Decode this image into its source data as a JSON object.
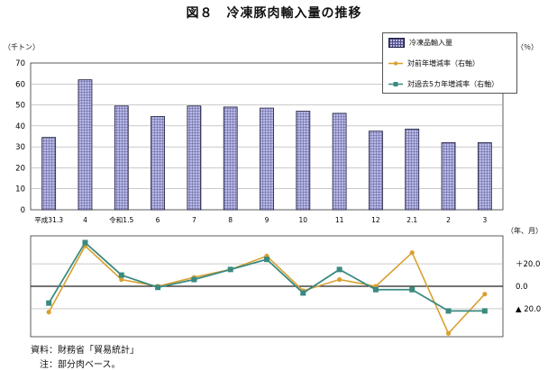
{
  "title": "図８　冷凍豚肉輸入量の推移",
  "left_unit": "（千トン）",
  "right_unit": "（％）",
  "x_unit": "（年、月）",
  "source_lines": [
    "資料：財務省「貿易統計」",
    "　注：部分肉ベース。"
  ],
  "colors": {
    "bar_fill": "#b8b8e8",
    "bar_grid": "#4a4a80",
    "yoy": "#d9a030",
    "vs5y": "#3a8a80"
  },
  "chart_data": [
    {
      "type": "bar",
      "categories": [
        "平成31.3",
        "4",
        "令和1.5",
        "6",
        "7",
        "8",
        "9",
        "10",
        "11",
        "12",
        "2.1",
        "2",
        "3"
      ],
      "series": [
        {
          "name": "冷凍品輸入量",
          "values": [
            34.5,
            62,
            49.5,
            44.5,
            49.5,
            49,
            48.5,
            47,
            46,
            37.5,
            38.5,
            32,
            32
          ]
        }
      ],
      "ylim": [
        0,
        70
      ],
      "yticks": [
        0,
        10,
        20,
        30,
        40,
        50,
        60,
        70
      ],
      "grid": true
    },
    {
      "type": "line",
      "categories": [
        "平成31.3",
        "4",
        "令和1.5",
        "6",
        "7",
        "8",
        "9",
        "10",
        "11",
        "12",
        "2.1",
        "2",
        "3"
      ],
      "series": [
        {
          "name": "対前年増減率（右軸）",
          "values": [
            -23,
            36,
            6,
            0,
            8,
            15,
            27,
            -4,
            6,
            0,
            30,
            -42,
            -7
          ]
        },
        {
          "name": "対過去5カ年増減率（右軸）",
          "values": [
            -15,
            39,
            10,
            -1,
            6,
            15,
            24,
            -6,
            15,
            -3,
            -3,
            -22,
            -22
          ]
        }
      ],
      "ylim": [
        -45,
        45
      ],
      "yticks": [
        {
          "value": 20,
          "label": "＋20.0"
        },
        {
          "value": 0,
          "label": "0.0"
        },
        {
          "value": -20,
          "label": "▲ 20.0"
        }
      ]
    }
  ]
}
